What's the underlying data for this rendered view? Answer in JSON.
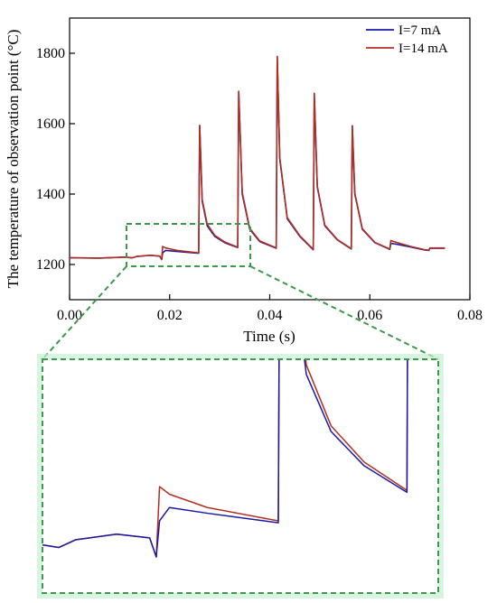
{
  "chart_data": {
    "type": "line",
    "xlabel": "Time (s)",
    "ylabel": "The temperature of observation point (°C)",
    "xlim": [
      0,
      0.08
    ],
    "ylim": [
      1100,
      1900
    ],
    "x_ticks": [
      "0.00",
      "0.02",
      "0.04",
      "0.06",
      "0.08"
    ],
    "y_ticks": [
      "1200",
      "1400",
      "1600",
      "1800"
    ],
    "legend_position": "top-right",
    "inset": {
      "x_range": [
        0.0115,
        0.0355
      ],
      "y_range": [
        1195,
        1318
      ]
    },
    "series": [
      {
        "name": "I=7 mA",
        "color": "#1a1aa6",
        "points": [
          [
            0,
            1219
          ],
          [
            0.006,
            1218
          ],
          [
            0.011,
            1221
          ],
          [
            0.0125,
            1219
          ],
          [
            0.0135,
            1223
          ],
          [
            0.016,
            1226
          ],
          [
            0.018,
            1224
          ],
          [
            0.0184,
            1214
          ],
          [
            0.0186,
            1233
          ],
          [
            0.0192,
            1240
          ],
          [
            0.0215,
            1237
          ],
          [
            0.0258,
            1232
          ],
          [
            0.026,
            1595
          ],
          [
            0.0265,
            1380
          ],
          [
            0.0275,
            1310
          ],
          [
            0.029,
            1280
          ],
          [
            0.031,
            1262
          ],
          [
            0.0336,
            1248
          ],
          [
            0.0338,
            1692
          ],
          [
            0.0345,
            1400
          ],
          [
            0.036,
            1300
          ],
          [
            0.038,
            1265
          ],
          [
            0.0413,
            1246
          ],
          [
            0.0415,
            1791
          ],
          [
            0.042,
            1500
          ],
          [
            0.0435,
            1330
          ],
          [
            0.046,
            1280
          ],
          [
            0.0487,
            1242
          ],
          [
            0.0489,
            1686
          ],
          [
            0.0495,
            1420
          ],
          [
            0.051,
            1310
          ],
          [
            0.0535,
            1270
          ],
          [
            0.0563,
            1244
          ],
          [
            0.0565,
            1594
          ],
          [
            0.057,
            1400
          ],
          [
            0.0585,
            1300
          ],
          [
            0.061,
            1262
          ],
          [
            0.064,
            1243
          ],
          [
            0.0642,
            1260
          ],
          [
            0.0655,
            1257
          ],
          [
            0.068,
            1250
          ],
          [
            0.071,
            1241
          ],
          [
            0.0718,
            1240
          ],
          [
            0.072,
            1246
          ],
          [
            0.075,
            1246
          ]
        ]
      },
      {
        "name": "I=14 mA",
        "color": "#b03020",
        "points": [
          [
            0,
            1219
          ],
          [
            0.006,
            1218
          ],
          [
            0.011,
            1221
          ],
          [
            0.0125,
            1219
          ],
          [
            0.0135,
            1223
          ],
          [
            0.016,
            1226
          ],
          [
            0.018,
            1224
          ],
          [
            0.0184,
            1214
          ],
          [
            0.0186,
            1251
          ],
          [
            0.0192,
            1247
          ],
          [
            0.0215,
            1240
          ],
          [
            0.0258,
            1233
          ],
          [
            0.026,
            1595
          ],
          [
            0.0265,
            1385
          ],
          [
            0.0275,
            1315
          ],
          [
            0.029,
            1283
          ],
          [
            0.031,
            1264
          ],
          [
            0.0336,
            1249
          ],
          [
            0.0338,
            1692
          ],
          [
            0.0345,
            1405
          ],
          [
            0.036,
            1303
          ],
          [
            0.038,
            1267
          ],
          [
            0.0413,
            1247
          ],
          [
            0.0415,
            1791
          ],
          [
            0.042,
            1505
          ],
          [
            0.0435,
            1333
          ],
          [
            0.046,
            1282
          ],
          [
            0.0487,
            1243
          ],
          [
            0.0489,
            1686
          ],
          [
            0.0495,
            1423
          ],
          [
            0.051,
            1312
          ],
          [
            0.0535,
            1271
          ],
          [
            0.0563,
            1245
          ],
          [
            0.0565,
            1594
          ],
          [
            0.057,
            1403
          ],
          [
            0.0585,
            1302
          ],
          [
            0.061,
            1263
          ],
          [
            0.064,
            1244
          ],
          [
            0.0642,
            1268
          ],
          [
            0.0655,
            1262
          ],
          [
            0.068,
            1252
          ],
          [
            0.071,
            1242
          ],
          [
            0.0718,
            1241
          ],
          [
            0.072,
            1247
          ],
          [
            0.075,
            1247
          ]
        ]
      }
    ]
  },
  "colors": {
    "zoom_box": "#3a9a4a",
    "inset_glow": "#c4f0d2",
    "axis": "#000000"
  }
}
